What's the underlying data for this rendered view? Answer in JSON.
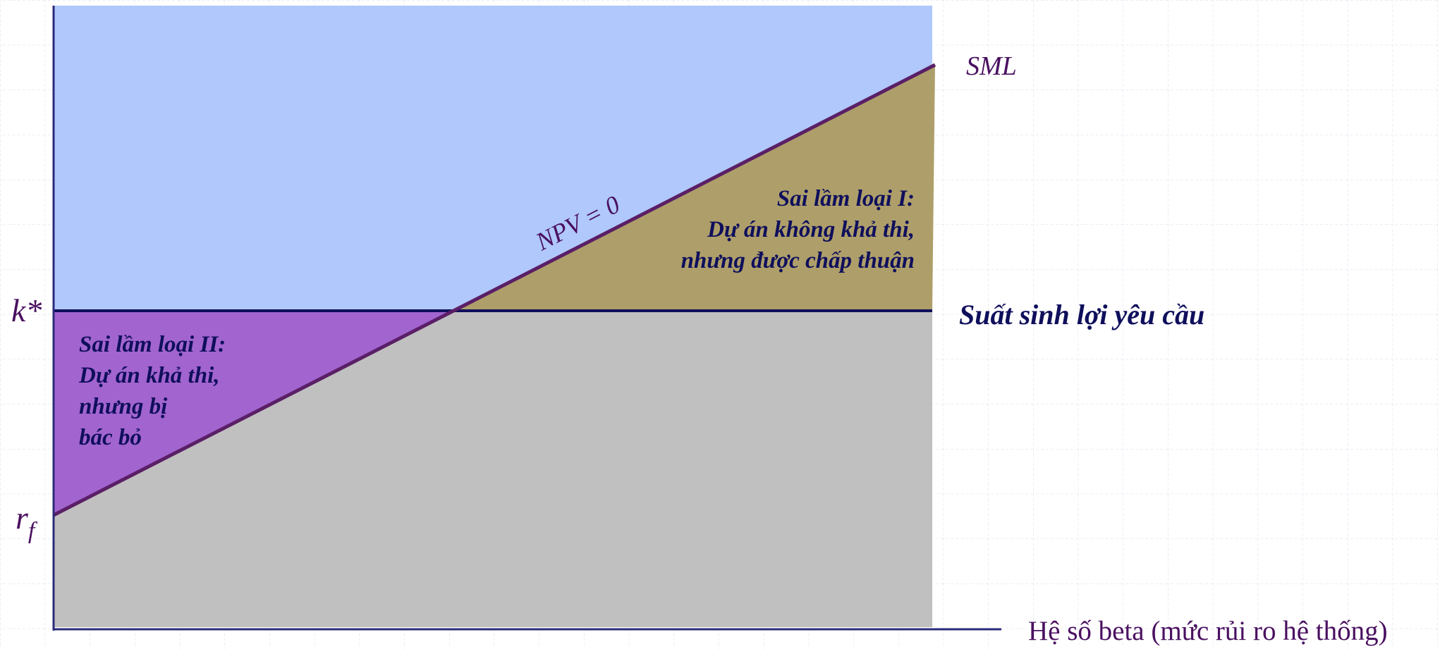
{
  "labels": {
    "k_star": "k*",
    "r_f_main": "r",
    "r_f_sub": "f",
    "sml": "SML",
    "npv": "NPV = 0",
    "required_return": "Suất sinh lợi yêu cầu",
    "x_axis": "Hệ số beta (mức rủi ro hệ thống)",
    "error_type_1": {
      "line1": "Sai lầm loại I:",
      "line2": "Dự án không khả thi,",
      "line3": "nhưng được chấp thuận"
    },
    "error_type_2": {
      "line1": "Sai lầm loại II:",
      "line2": "Dự án khả thi,",
      "line3": "nhưng bị",
      "line4": "bác bỏ"
    }
  },
  "colors": {
    "region_above": "#b0c8fc",
    "region_below": "#c0c0c0",
    "region_type_1": "#ae9f6a",
    "region_type_2": "#a264cf",
    "sml_line": "#5a1f66",
    "required_line": "#0f0f5c",
    "axis": "#2b2b7a",
    "grid": "#d8dcec",
    "text_navy": "#0f0f5c",
    "text_purple": "#4a1060"
  }
}
